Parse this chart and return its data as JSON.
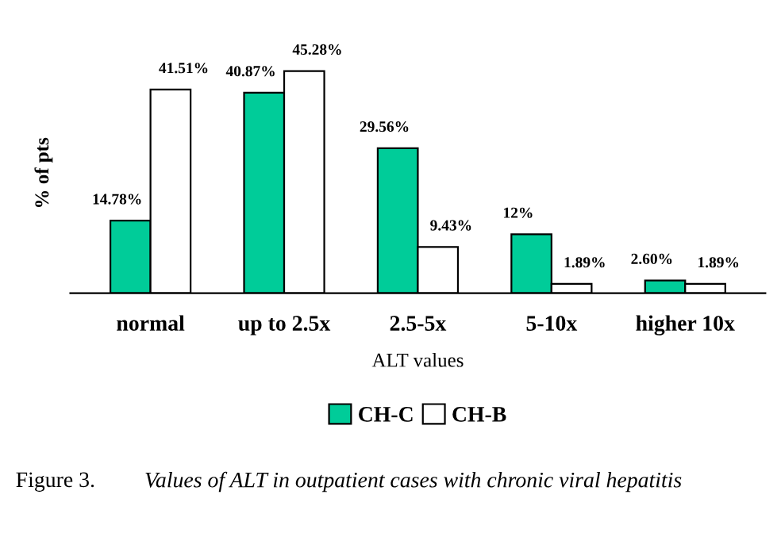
{
  "chart_data": {
    "type": "bar",
    "categories": [
      "normal",
      "up to 2.5x",
      "2.5-5x",
      "5-10x",
      "higher 10x"
    ],
    "series": [
      {
        "name": "CH-C",
        "color": "#00cc99",
        "values": [
          14.78,
          40.87,
          29.56,
          12,
          2.6
        ],
        "value_labels": [
          "14.78%",
          "40.87%",
          "29.56%",
          "12%",
          "2.60%"
        ]
      },
      {
        "name": "CH-B",
        "color": "#ffffff",
        "values": [
          41.51,
          45.28,
          9.43,
          1.89,
          1.89
        ],
        "value_labels": [
          "41.51%",
          "45.28%",
          "9.43%",
          "1.89%",
          "1.89%"
        ]
      }
    ],
    "xlabel": "ALT values",
    "ylabel": "% of pts",
    "legend": "bottom",
    "grid": false,
    "annotations": [
      "Figure 3.",
      "Values of ALT in outpatient cases with chronic viral hepatitis"
    ]
  }
}
